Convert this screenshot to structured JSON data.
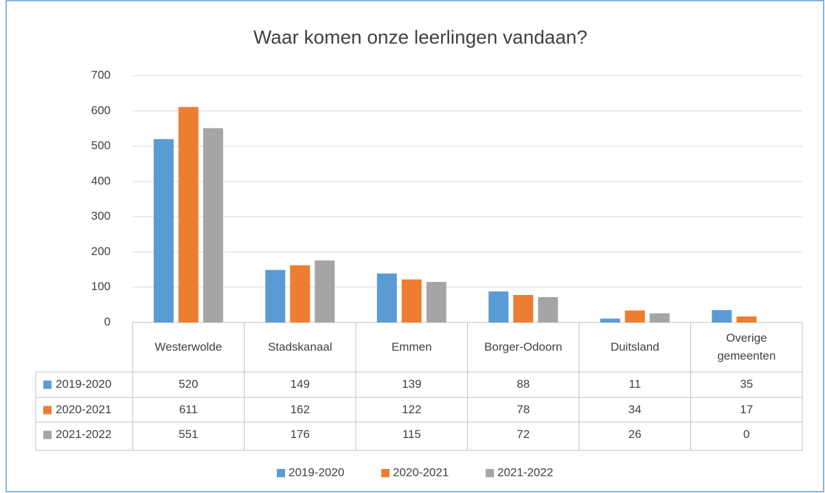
{
  "chart_data": {
    "type": "bar",
    "title": "Waar komen onze leerlingen vandaan?",
    "categories": [
      "Westerwolde",
      "Stadskanaal",
      "Emmen",
      "Borger-Odoorn",
      "Duitsland",
      "Overige gemeenten"
    ],
    "series": [
      {
        "name": "2019-2020",
        "color": "#5b9bd5",
        "values": [
          520,
          149,
          139,
          88,
          11,
          35
        ]
      },
      {
        "name": "2020-2021",
        "color": "#ed7d31",
        "values": [
          611,
          162,
          122,
          78,
          34,
          17
        ]
      },
      {
        "name": "2021-2022",
        "color": "#a5a5a5",
        "values": [
          551,
          176,
          115,
          72,
          26,
          0
        ]
      }
    ],
    "ylim": [
      0,
      700
    ],
    "yticks": [
      0,
      100,
      200,
      300,
      400,
      500,
      600,
      700
    ],
    "grid": true,
    "legend": "bottom"
  }
}
